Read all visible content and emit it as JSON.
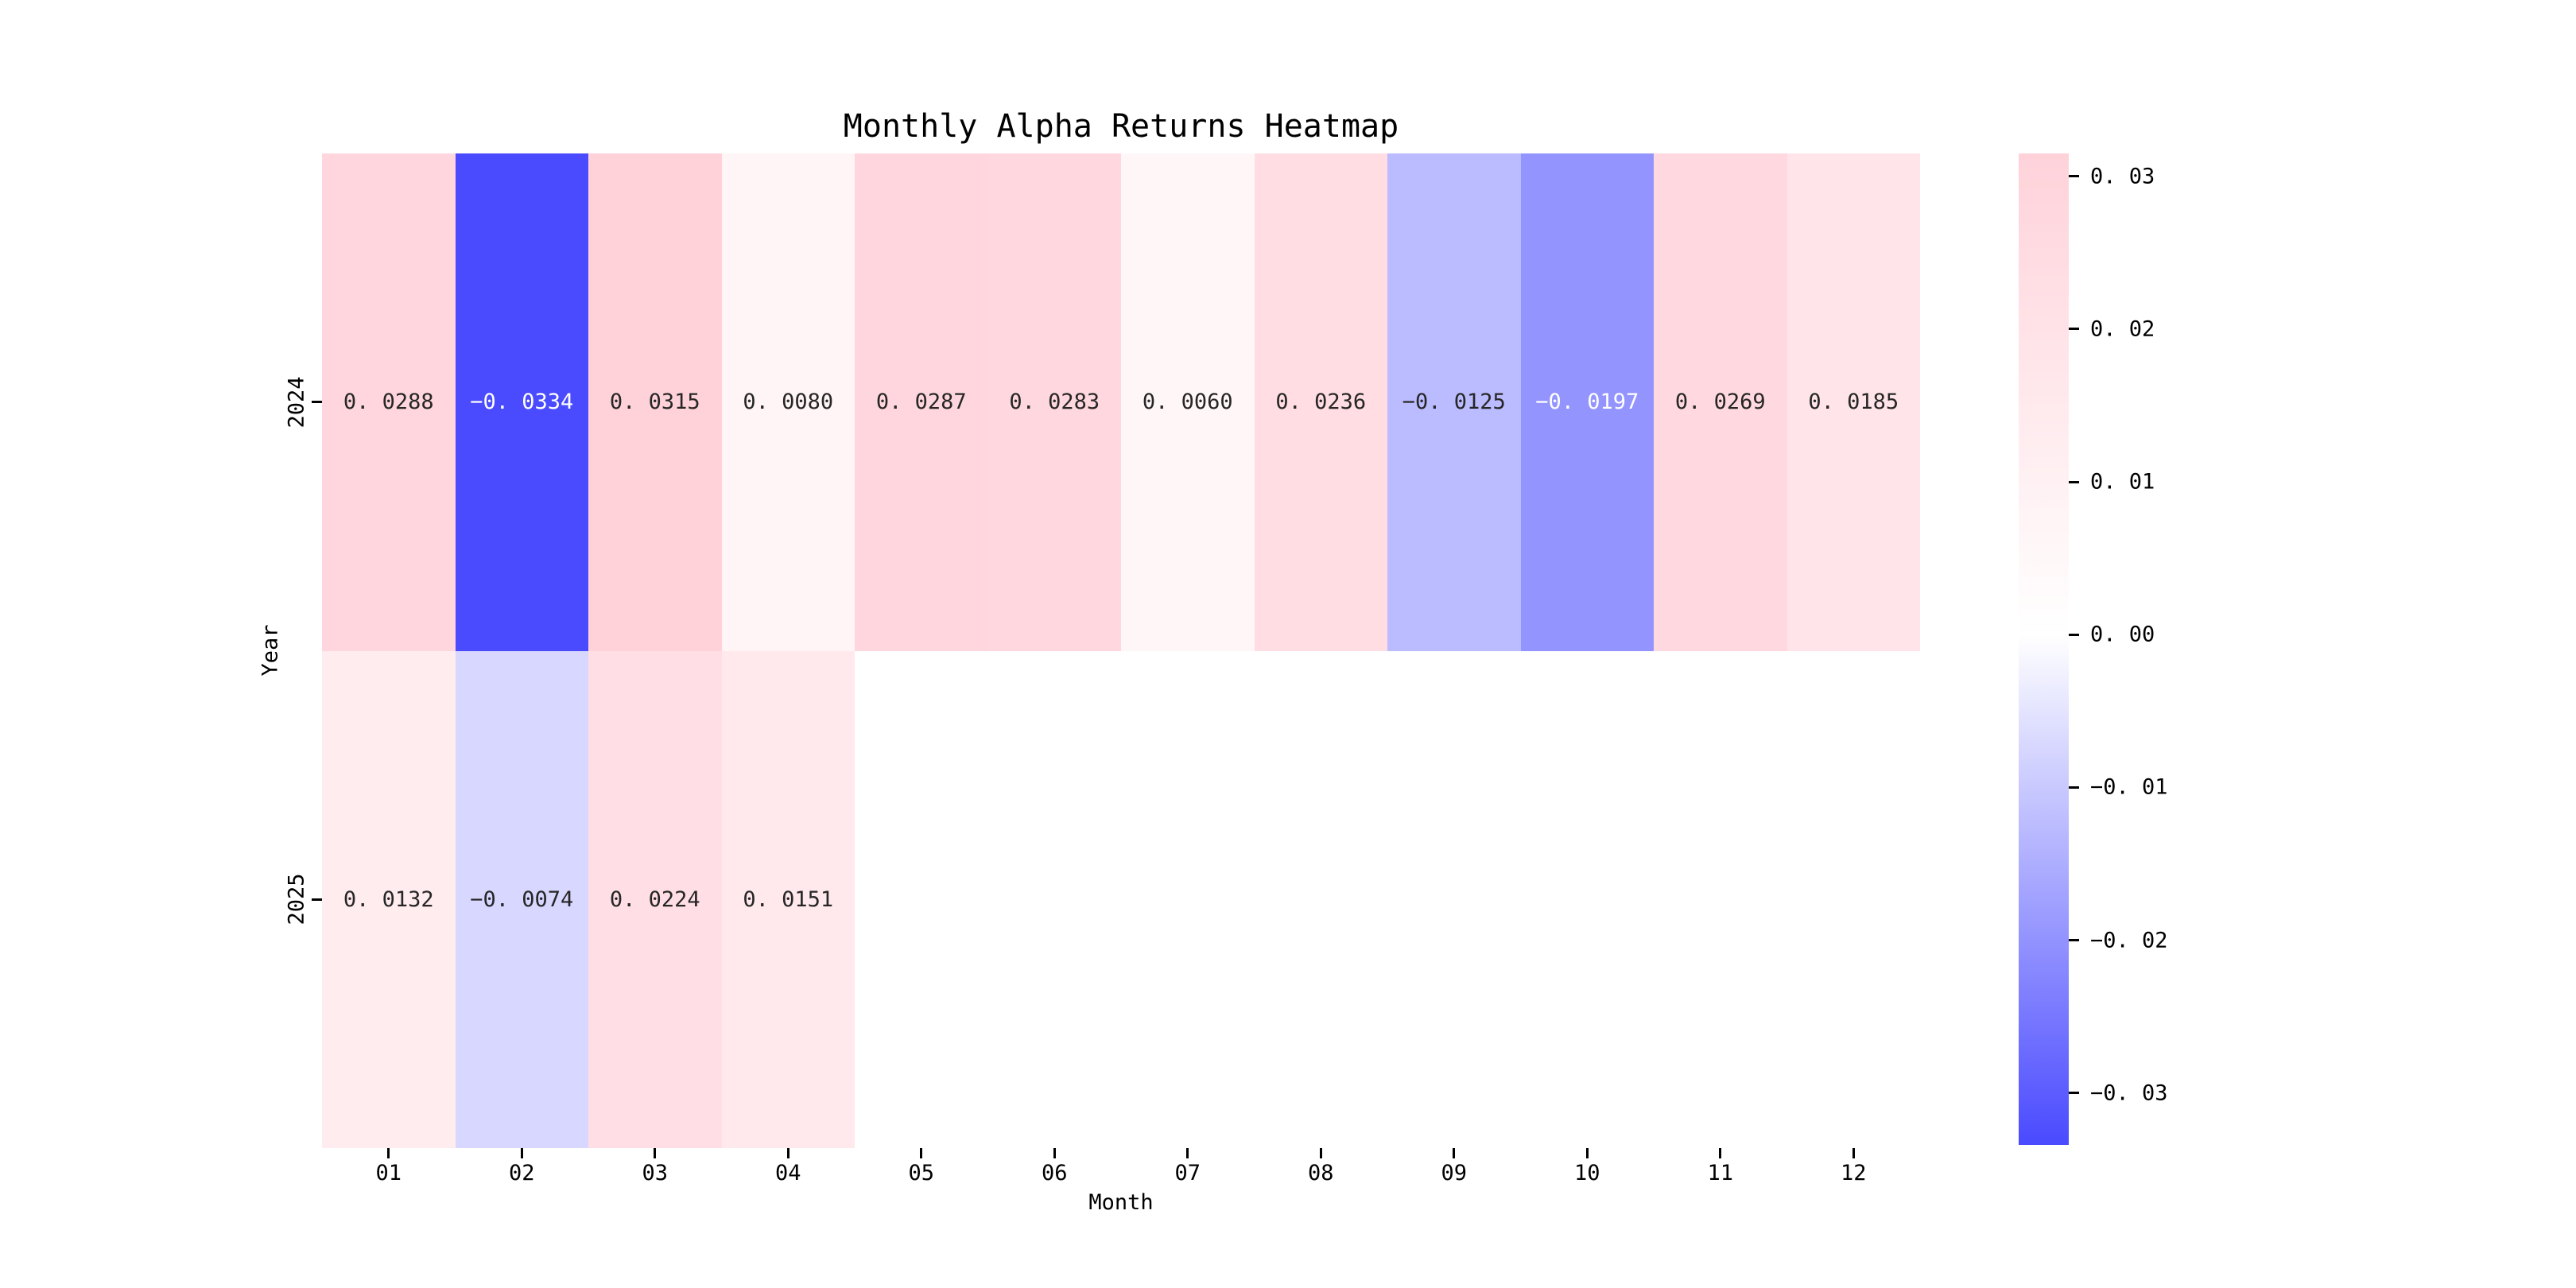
{
  "title": "Monthly Alpha Returns Heatmap",
  "xlabel": "Month",
  "ylabel": "Year",
  "chart_data": {
    "type": "heatmap",
    "title": "Monthly Alpha Returns Heatmap",
    "xlabel": "Month",
    "ylabel": "Year",
    "x_categories": [
      "01",
      "02",
      "03",
      "04",
      "05",
      "06",
      "07",
      "08",
      "09",
      "10",
      "11",
      "12"
    ],
    "y_categories": [
      "2024",
      "2025"
    ],
    "series": [
      {
        "name": "2024",
        "values": [
          0.0288,
          -0.0334,
          0.0315,
          0.008,
          0.0287,
          0.0283,
          0.006,
          0.0236,
          -0.0125,
          -0.0197,
          0.0269,
          0.0185
        ]
      },
      {
        "name": "2025",
        "values": [
          0.0132,
          -0.0074,
          0.0224,
          0.0151,
          null,
          null,
          null,
          null,
          null,
          null,
          null,
          null
        ]
      }
    ],
    "annotations": [
      [
        "0. 0288",
        "−0. 0334",
        "0. 0315",
        "0. 0080",
        "0. 0287",
        "0. 0283",
        "0. 0060",
        "0. 0236",
        "−0. 0125",
        "−0. 0197",
        "0. 0269",
        "0. 0185"
      ],
      [
        "0. 0132",
        "−0. 0074",
        "0. 0224",
        "0. 0151",
        null,
        null,
        null,
        null,
        null,
        null,
        null,
        null
      ]
    ],
    "vmin": -0.0334,
    "vmax": 0.0315,
    "colormap": {
      "negative": "#4A4AFF",
      "zero": "#FFFFFF",
      "positive": "#FFD2DA"
    },
    "annotation_text_dark": "#262626",
    "annotation_text_light": "#FFFFFF",
    "grid": false,
    "legend": "colorbar-right",
    "colorbar_ticks": {
      "values": [
        0.03,
        0.02,
        0.01,
        0.0,
        -0.01,
        -0.02,
        -0.03
      ],
      "labels": [
        "0. 03",
        "0. 02",
        "0. 01",
        "0. 00",
        "−0. 01",
        "−0. 02",
        "−0. 03"
      ]
    }
  }
}
